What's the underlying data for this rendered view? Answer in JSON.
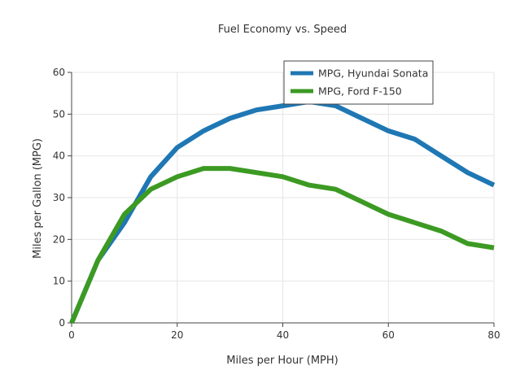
{
  "chart_data": {
    "type": "line",
    "title": "Fuel Economy vs. Speed",
    "xlabel": "Miles per Hour (MPH)",
    "ylabel": "Miles per Gallon (MPG)",
    "xlim": [
      0,
      80
    ],
    "ylim": [
      0,
      60
    ],
    "xticks": [
      0,
      20,
      40,
      60,
      80
    ],
    "yticks": [
      0,
      10,
      20,
      30,
      40,
      50,
      60
    ],
    "grid": true,
    "legend_position": "top-right",
    "series": [
      {
        "name": "MPG, Hyundai Sonata",
        "color": "#1f77b4",
        "x": [
          0,
          5,
          10,
          15,
          20,
          25,
          30,
          35,
          40,
          45,
          50,
          55,
          60,
          65,
          70,
          75,
          80
        ],
        "y": [
          0,
          15,
          24,
          35,
          42,
          46,
          49,
          51,
          52,
          53,
          52,
          49,
          46,
          44,
          40,
          36,
          33
        ]
      },
      {
        "name": "MPG, Ford F-150",
        "color": "#3c9a23",
        "x": [
          0,
          5,
          10,
          15,
          20,
          25,
          30,
          35,
          40,
          45,
          50,
          55,
          60,
          65,
          70,
          75,
          80
        ],
        "y": [
          0,
          15,
          26,
          32,
          35,
          37,
          37,
          36,
          35,
          33,
          32,
          29,
          26,
          24,
          22,
          19,
          18
        ]
      }
    ]
  }
}
